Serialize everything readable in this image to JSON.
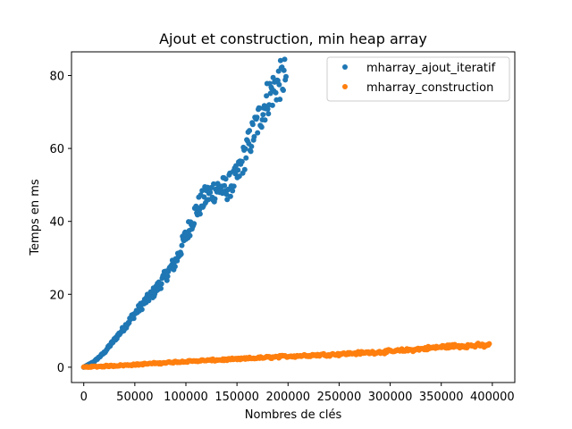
{
  "chart_data": {
    "type": "scatter",
    "title": "Ajout et construction, min heap array",
    "xlabel": "Nombres de clés",
    "ylabel": "Temps en ms",
    "xlim": [
      -12000,
      422000
    ],
    "ylim": [
      -4.2,
      86.5
    ],
    "xticks": [
      0,
      50000,
      100000,
      150000,
      200000,
      250000,
      300000,
      350000,
      400000
    ],
    "yticks": [
      0,
      20,
      40,
      60,
      80
    ],
    "legend_position": "top-right",
    "series": [
      {
        "name": "mharray_ajout_iteratif",
        "color": "#1f77b4",
        "x_range": [
          0,
          198000
        ],
        "anchors": [
          [
            0,
            0
          ],
          [
            10000,
            1.5
          ],
          [
            20000,
            4
          ],
          [
            30000,
            7.5
          ],
          [
            40000,
            11
          ],
          [
            48000,
            14
          ],
          [
            60000,
            18
          ],
          [
            70000,
            21
          ],
          [
            80000,
            25
          ],
          [
            90000,
            29
          ],
          [
            100000,
            36
          ],
          [
            110000,
            43
          ],
          [
            120000,
            47
          ],
          [
            130000,
            49
          ],
          [
            140000,
            49
          ],
          [
            150000,
            52
          ],
          [
            160000,
            60
          ],
          [
            170000,
            67
          ],
          [
            180000,
            74
          ],
          [
            190000,
            78
          ],
          [
            198000,
            80
          ]
        ],
        "noise": 0.07,
        "count": 300
      },
      {
        "name": "mharray_construction",
        "color": "#ff7f0e",
        "x_range": [
          0,
          397000
        ],
        "anchors": [
          [
            0,
            0
          ],
          [
            50000,
            0.7
          ],
          [
            100000,
            1.6
          ],
          [
            150000,
            2.2
          ],
          [
            200000,
            3.0
          ],
          [
            250000,
            3.6
          ],
          [
            300000,
            4.3
          ],
          [
            330000,
            5.0
          ],
          [
            360000,
            5.8
          ],
          [
            397000,
            6.0
          ]
        ],
        "noise": 0.08,
        "count": 400
      }
    ]
  }
}
